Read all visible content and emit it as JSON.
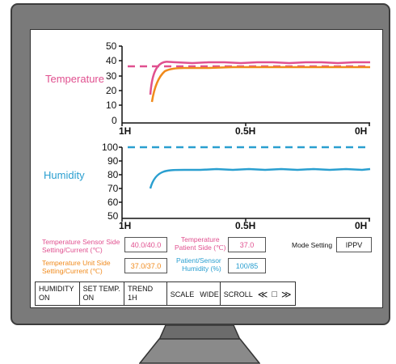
{
  "temperature_chart": {
    "label": "Temperature",
    "y_ticks": [
      "50",
      "40",
      "30",
      "20",
      "10",
      "0"
    ],
    "x_ticks": [
      "1H",
      "0.5H",
      "0H"
    ],
    "colors": {
      "sensor": "#e0508f",
      "unit": "#f08a1c",
      "setting": "#e0508f"
    }
  },
  "humidity_chart": {
    "label": "Humidity",
    "y_ticks": [
      "100",
      "90",
      "80",
      "70",
      "60",
      "50"
    ],
    "x_ticks": [
      "1H",
      "0.5H",
      "0H"
    ],
    "colors": {
      "current": "#2a9fd0",
      "setting": "#2a9fd0"
    }
  },
  "readouts": {
    "sensor_side_label_1": "Temperature Sensor Side",
    "sensor_side_label_2": "Setting/Current (℃)",
    "sensor_side_value": "40.0/40.0",
    "unit_side_label_1": "Temperature Unit Side",
    "unit_side_label_2": "Setting/Current (℃)",
    "unit_side_value": "37.0/37.0",
    "patient_side_label_1": "Temperature",
    "patient_side_label_2": "Patient Side (℃)",
    "patient_side_value": "37.0",
    "humidity_label_1": "Patient/Sensor",
    "humidity_label_2": "Humidity (%)",
    "humidity_value": "100/85",
    "mode_label": "Mode Setting",
    "mode_value": "IPPV"
  },
  "buttons": {
    "humidity_1": "HUMIDITY",
    "humidity_2": "ON",
    "set_temp_1": "SET TEMP.",
    "set_temp_2": "ON",
    "trend_1": "TREND",
    "trend_2": "1H",
    "scale": "SCALE",
    "wide": "WIDE",
    "scroll": "SCROLL",
    "scroll_left": "≪",
    "scroll_stop": "□",
    "scroll_right": "≫"
  }
}
